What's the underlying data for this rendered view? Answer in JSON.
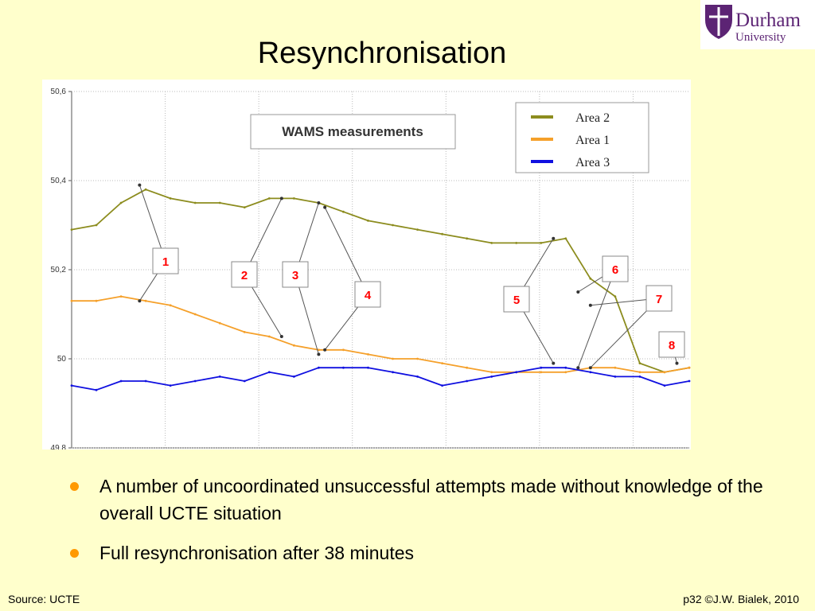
{
  "slide": {
    "title": "Resynchronisation",
    "logo": {
      "name": "Durham",
      "subtitle": "University"
    }
  },
  "bullets": [
    "A number of uncoordinated unsuccessful attempts made without knowledge of the overall UCTE situation",
    "Full resynchronisation after 38 minutes"
  ],
  "footer": {
    "left": "Source: UCTE",
    "right": "p32 ©J.W. Bialek, 2010"
  },
  "colors": {
    "background": "#ffffcc",
    "bullet": "#ff9900",
    "brand": "#5c2474",
    "area2": "#8c8c1e",
    "area1": "#f5a02a",
    "area3": "#1010e0",
    "marker_text": "#ff0000"
  },
  "chart_data": {
    "type": "line",
    "title": "WAMS measurements",
    "xlabel": "",
    "ylabel": "",
    "ylim": [
      49.8,
      50.6
    ],
    "ytick_labels": [
      "50,6",
      "50,4",
      "50,2",
      "50",
      "49,8"
    ],
    "grid": true,
    "legend_position": "top-right",
    "x": [
      0,
      4,
      8,
      12,
      16,
      20,
      24,
      28,
      32,
      36,
      40,
      44,
      48,
      52,
      56,
      60,
      64,
      68,
      72,
      76,
      80,
      84,
      88,
      92,
      96,
      100
    ],
    "series": [
      {
        "name": "Area 2",
        "color": "#8c8c1e",
        "values": [
          50.29,
          50.3,
          50.35,
          50.38,
          50.36,
          50.35,
          50.35,
          50.34,
          50.36,
          50.36,
          50.35,
          50.33,
          50.31,
          50.3,
          50.29,
          50.28,
          50.27,
          50.26,
          50.26,
          50.26,
          50.27,
          50.18,
          50.14,
          49.99,
          49.97,
          49.98
        ]
      },
      {
        "name": "Area 1",
        "color": "#f5a02a",
        "values": [
          50.13,
          50.13,
          50.14,
          50.13,
          50.12,
          50.1,
          50.08,
          50.06,
          50.05,
          50.03,
          50.02,
          50.02,
          50.01,
          50.0,
          50.0,
          49.99,
          49.98,
          49.97,
          49.97,
          49.97,
          49.97,
          49.98,
          49.98,
          49.97,
          49.97,
          49.98
        ]
      },
      {
        "name": "Area 3",
        "color": "#1010e0",
        "values": [
          49.94,
          49.93,
          49.95,
          49.95,
          49.94,
          49.95,
          49.96,
          49.95,
          49.97,
          49.96,
          49.98,
          49.98,
          49.98,
          49.97,
          49.96,
          49.94,
          49.95,
          49.96,
          49.97,
          49.98,
          49.98,
          49.97,
          49.96,
          49.96,
          49.94,
          49.95
        ]
      }
    ],
    "annotations": [
      {
        "label": "1",
        "points": [
          [
            11,
            50.39
          ],
          [
            11,
            50.13
          ]
        ]
      },
      {
        "label": "2",
        "points": [
          [
            34,
            50.36
          ],
          [
            34,
            50.05
          ]
        ]
      },
      {
        "label": "3",
        "points": [
          [
            40,
            50.35
          ],
          [
            40,
            50.01
          ]
        ]
      },
      {
        "label": "4",
        "points": [
          [
            41,
            50.34
          ],
          [
            41,
            50.02
          ]
        ]
      },
      {
        "label": "5",
        "points": [
          [
            78,
            50.27
          ],
          [
            78,
            49.99
          ]
        ]
      },
      {
        "label": "6",
        "points": [
          [
            82,
            50.15
          ],
          [
            82,
            49.98
          ]
        ]
      },
      {
        "label": "7",
        "points": [
          [
            84,
            50.12
          ],
          [
            84,
            49.98
          ]
        ]
      },
      {
        "label": "8",
        "points": [
          [
            98,
            49.99
          ]
        ]
      }
    ]
  }
}
